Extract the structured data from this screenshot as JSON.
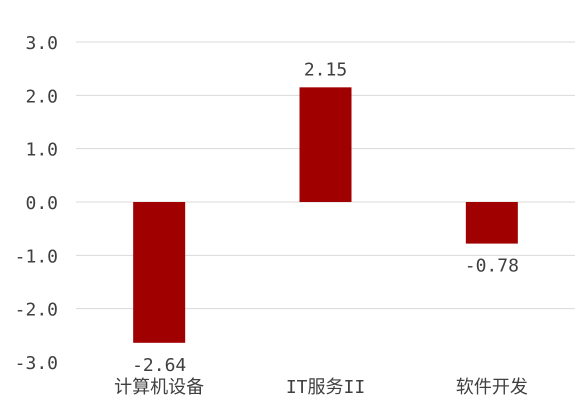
{
  "chart_data": {
    "type": "bar",
    "title": "",
    "xlabel": "",
    "ylabel": "",
    "categories": [
      "计算机设备",
      "IT服务II",
      "软件开发"
    ],
    "values": [
      -2.64,
      2.15,
      -0.78
    ],
    "value_labels": [
      "-2.64",
      "2.15",
      "-0.78"
    ],
    "ylim": [
      -3.0,
      3.0
    ],
    "yticks": [
      3.0,
      2.0,
      1.0,
      0.0,
      -1.0,
      -2.0,
      -3.0
    ],
    "ytick_labels": [
      "3.0",
      "2.0",
      "1.0",
      "0.0",
      "-1.0",
      "-2.0",
      "-3.0"
    ],
    "grid": true,
    "legend": "none",
    "bar_color": "#A00000",
    "grid_color": "#D9D9D9",
    "text_color": "#404040"
  }
}
